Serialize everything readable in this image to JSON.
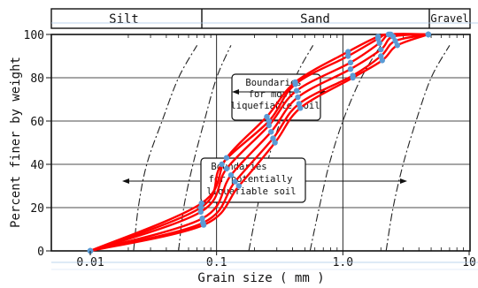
{
  "chart_data": {
    "type": "line",
    "title": "",
    "xlabel": "Grain  size     ( mm )",
    "ylabel": "Percent  finer  by  weight",
    "xscale": "log",
    "xlim": [
      0.01,
      10
    ],
    "ylim": [
      0,
      100
    ],
    "x_tick_labels": [
      "0.01",
      "0.1",
      "1.0",
      "10"
    ],
    "y_tick_labels": [
      "0",
      "20",
      "40",
      "60",
      "80",
      "100"
    ],
    "y_ticks": [
      0,
      20,
      40,
      60,
      80,
      100
    ],
    "soil_classes": [
      "Silt",
      "Sand",
      "Gravel"
    ],
    "annotations": {
      "most_liquefiable": [
        "Boundaries",
        "for most",
        "liquefiable soil"
      ],
      "potentially_liquefiable": [
        "Boundaries",
        "for potentially",
        "liquefiable soil"
      ]
    },
    "colors": {
      "gradation_curves": "#ff0000",
      "sample_points": "#5b9bd5",
      "boundaries": "#222222"
    },
    "boundary_curves": [
      [
        [
          0.022,
          0
        ],
        [
          0.024,
          20
        ],
        [
          0.028,
          40
        ],
        [
          0.037,
          60
        ],
        [
          0.05,
          80
        ],
        [
          0.07,
          95
        ]
      ],
      [
        [
          0.05,
          0
        ],
        [
          0.055,
          20
        ],
        [
          0.065,
          40
        ],
        [
          0.08,
          60
        ],
        [
          0.1,
          80
        ],
        [
          0.13,
          95
        ]
      ],
      [
        [
          0.18,
          0
        ],
        [
          0.21,
          20
        ],
        [
          0.25,
          40
        ],
        [
          0.32,
          60
        ],
        [
          0.42,
          80
        ],
        [
          0.58,
          95
        ]
      ],
      [
        [
          0.55,
          0
        ],
        [
          0.65,
          20
        ],
        [
          0.78,
          40
        ],
        [
          1.0,
          60
        ],
        [
          1.4,
          80
        ],
        [
          2.0,
          95
        ]
      ],
      [
        [
          2.2,
          0
        ],
        [
          2.5,
          20
        ],
        [
          3.0,
          40
        ],
        [
          3.8,
          60
        ],
        [
          5.0,
          80
        ],
        [
          7.0,
          95
        ]
      ]
    ],
    "series": [
      {
        "x": [
          0.01,
          0.075,
          0.11,
          0.26,
          0.42,
          1.1,
          1.9,
          2.3,
          4.75
        ],
        "y": [
          0,
          20,
          40,
          60,
          77,
          90,
          98,
          100,
          100
        ]
      },
      {
        "x": [
          0.01,
          0.075,
          0.12,
          0.26,
          0.43,
          1.15,
          1.95,
          2.4,
          4.75
        ],
        "y": [
          0,
          18,
          38,
          58,
          74,
          87,
          96,
          100,
          100
        ]
      },
      {
        "x": [
          0.01,
          0.077,
          0.13,
          0.27,
          0.44,
          1.15,
          2.0,
          2.5,
          4.75
        ],
        "y": [
          0,
          15,
          35,
          55,
          71,
          84,
          93,
          99,
          100
        ]
      },
      {
        "x": [
          0.01,
          0.078,
          0.14,
          0.28,
          0.45,
          1.2,
          2.0,
          2.6,
          4.75
        ],
        "y": [
          0,
          13,
          32,
          52,
          68,
          81,
          90,
          97,
          100
        ]
      },
      {
        "x": [
          0.01,
          0.076,
          0.12,
          0.25,
          0.42,
          1.1,
          1.9,
          2.35,
          4.75
        ],
        "y": [
          0,
          22,
          43,
          62,
          78,
          92,
          99,
          100,
          100
        ]
      },
      {
        "x": [
          0.01,
          0.079,
          0.15,
          0.29,
          0.46,
          1.2,
          2.05,
          2.7,
          4.75
        ],
        "y": [
          0,
          12,
          30,
          50,
          66,
          80,
          88,
          95,
          100
        ]
      }
    ]
  }
}
